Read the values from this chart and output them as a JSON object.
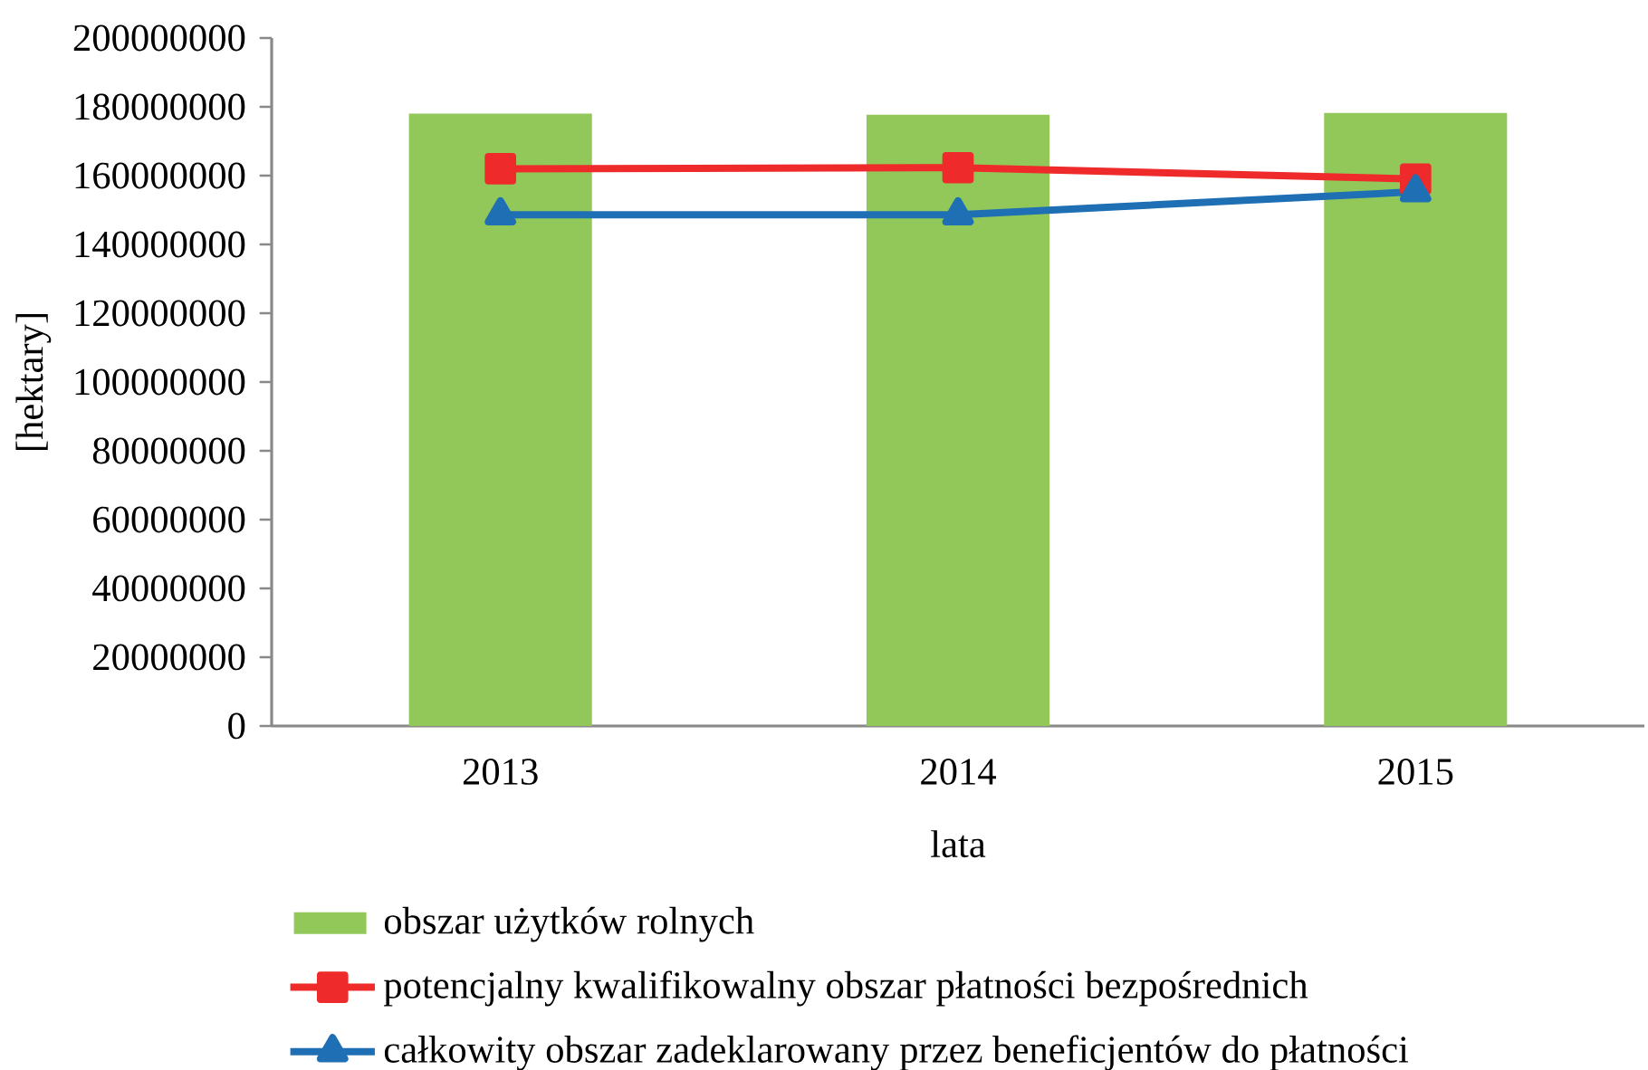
{
  "chart_data": {
    "type": "bar",
    "xlabel": "lata",
    "ylabel": "[hektary]",
    "categories": [
      "2013",
      "2014",
      "2015"
    ],
    "series": [
      {
        "name": "obszar użytków rolnych",
        "color": "#92c85a",
        "values": [
          178000000,
          177700000,
          178200000
        ]
      },
      {
        "name": "potencjalny kwalifikowalny obszar płatności bezpośrednich",
        "type": "line",
        "color": "#ee2a2a",
        "marker": "square",
        "values": [
          162000000,
          162300000,
          159000000
        ]
      },
      {
        "name": "całkowity obszar zadeklarowany przez beneficjentów do płatności",
        "type": "line",
        "color": "#1f6fb5",
        "marker": "triangle",
        "values": [
          148600000,
          148600000,
          155300000
        ]
      }
    ],
    "ylim": [
      0,
      200000000
    ],
    "yticks": [
      0,
      20000000,
      40000000,
      60000000,
      80000000,
      100000000,
      120000000,
      140000000,
      160000000,
      180000000,
      200000000
    ],
    "grid": false,
    "legend": "bottom"
  }
}
